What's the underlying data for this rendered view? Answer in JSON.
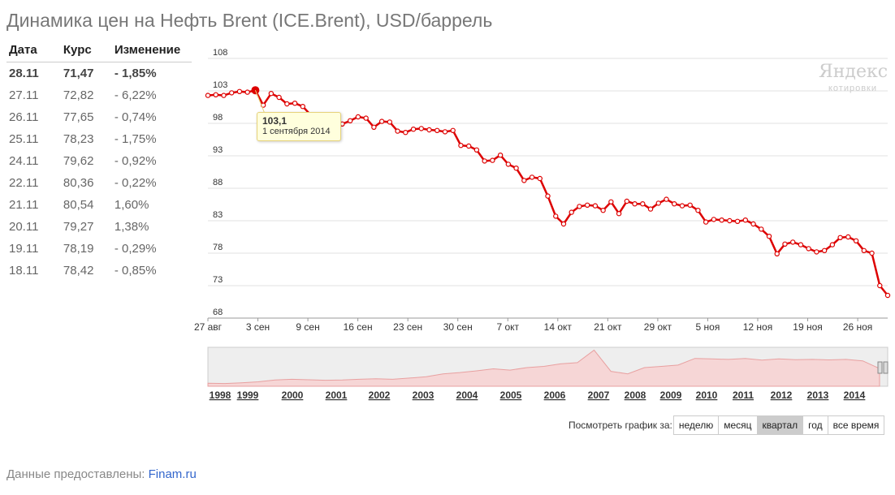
{
  "page": {
    "title": "Динамика цен на Нефть Brent (ICE.Brent), USD/баррель",
    "footer_prefix": "Данные предоставлены: ",
    "footer_link": "Finam.ru"
  },
  "table": {
    "headers": [
      "Дата",
      "Курс",
      "Изменение"
    ],
    "rows": [
      {
        "date": "28.11",
        "rate": "71,47",
        "change": "- 1,85%"
      },
      {
        "date": "27.11",
        "rate": "72,82",
        "change": "- 6,22%"
      },
      {
        "date": "26.11",
        "rate": "77,65",
        "change": "- 0,74%"
      },
      {
        "date": "25.11",
        "rate": "78,23",
        "change": "- 1,75%"
      },
      {
        "date": "24.11",
        "rate": "79,62",
        "change": "- 0,92%"
      },
      {
        "date": "22.11",
        "rate": "80,36",
        "change": "- 0,22%"
      },
      {
        "date": "21.11",
        "rate": "80,54",
        "change": "1,60%"
      },
      {
        "date": "20.11",
        "rate": "79,27",
        "change": "1,38%"
      },
      {
        "date": "19.11",
        "rate": "78,19",
        "change": "- 0,29%"
      },
      {
        "date": "18.11",
        "rate": "78,42",
        "change": "- 0,85%"
      }
    ]
  },
  "logo": {
    "big": "Яндекс",
    "small": "котировки"
  },
  "tooltip": {
    "value": "103,1",
    "date": "1 сентября 2014"
  },
  "period": {
    "label": "Посмотреть график за:",
    "options": [
      "неделю",
      "месяц",
      "квартал",
      "год",
      "все время"
    ],
    "active": "квартал"
  },
  "colors": {
    "line": "#dd0000",
    "grid": "#e2e2e2",
    "nav_fill": "#f6d6d6",
    "nav_line": "#e8a0a0",
    "nav_bg": "#eeeeee"
  },
  "chart_data": {
    "type": "line",
    "y_ticks": [
      "108",
      "103",
      "98",
      "93",
      "88",
      "83",
      "78",
      "73",
      "68"
    ],
    "ylim": [
      68,
      108
    ],
    "x_tick_labels": [
      "27 авг",
      "3 сен",
      "9 сен",
      "16 сен",
      "23 сен",
      "30 сен",
      "7 окт",
      "14 окт",
      "21 окт",
      "29 окт",
      "5 ноя",
      "12 ноя",
      "19 ноя",
      "26 ноя"
    ],
    "series": [
      {
        "values": [
          102.3,
          102.4,
          102.3,
          102.7,
          102.9,
          102.8,
          103.1,
          100.8,
          102.6,
          102.0,
          101.0,
          101.1,
          100.6,
          99.3,
          98.5,
          97.4,
          97.2,
          97.9,
          98.4,
          99.0,
          98.8,
          97.4,
          98.3,
          98.2,
          96.8,
          96.6,
          97.1,
          97.2,
          97.0,
          96.9,
          96.7,
          96.9,
          94.6,
          94.5,
          93.9,
          92.2,
          92.3,
          93.1,
          91.7,
          91.1,
          89.2,
          89.7,
          89.5,
          86.8,
          83.7,
          82.5,
          84.3,
          85.2,
          85.4,
          85.3,
          84.6,
          85.9,
          84.1,
          86.0,
          85.6,
          85.6,
          84.8,
          85.7,
          86.3,
          85.6,
          85.3,
          85.4,
          84.6,
          82.8,
          83.2,
          83.1,
          83.0,
          82.9,
          83.1,
          82.5,
          81.7,
          80.6,
          77.9,
          79.4,
          79.7,
          79.3,
          78.7,
          78.2,
          78.4,
          79.3,
          80.4,
          80.5,
          79.9,
          78.4,
          78.0,
          73.0,
          71.5
        ],
        "line_color": "#dd0000"
      }
    ]
  },
  "navigator": {
    "year_labels": [
      "1998",
      "1999",
      "2000",
      "2001",
      "2002",
      "2003",
      "2004",
      "2005",
      "2006",
      "2007",
      "2008",
      "2009",
      "2010",
      "2011",
      "2012",
      "2013",
      "2014"
    ],
    "values": [
      12,
      11,
      14,
      18,
      25,
      28,
      26,
      24,
      25,
      28,
      30,
      28,
      33,
      38,
      50,
      55,
      62,
      70,
      65,
      75,
      80,
      90,
      95,
      145,
      60,
      50,
      75,
      80,
      85,
      112,
      110,
      108,
      112,
      105,
      110,
      107,
      108,
      106,
      108,
      102,
      71
    ]
  }
}
